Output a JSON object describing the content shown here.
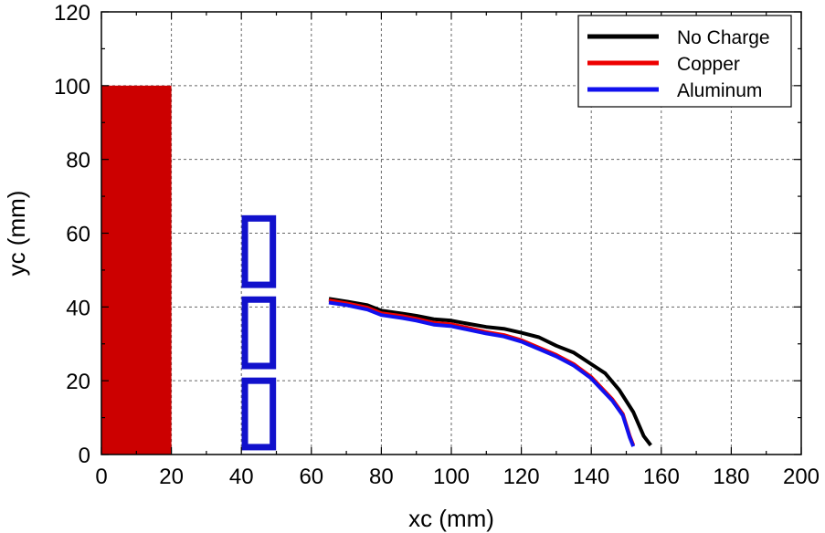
{
  "chart_data": {
    "type": "line",
    "title": "",
    "xlabel": "xc (mm)",
    "ylabel": "yc (mm)",
    "xlim": [
      0,
      200
    ],
    "ylim": [
      0,
      120
    ],
    "xticks": [
      0,
      20,
      40,
      60,
      80,
      100,
      120,
      140,
      160,
      180,
      200
    ],
    "yticks": [
      0,
      20,
      40,
      60,
      80,
      100,
      120
    ],
    "grid": true,
    "legend_position": "top-right",
    "series": [
      {
        "name": "No Charge",
        "color": "#000000",
        "x": [
          65,
          70,
          76,
          80,
          86,
          90,
          95,
          100,
          105,
          110,
          115,
          120,
          125,
          130,
          135,
          140,
          144,
          148,
          152,
          155,
          157
        ],
        "y": [
          42.2,
          41.5,
          40.5,
          39,
          38.2,
          37.6,
          36.7,
          36.3,
          35.4,
          34.6,
          34.1,
          33,
          31.8,
          29.5,
          27.6,
          24.5,
          22,
          17.5,
          11.5,
          5,
          2.5
        ]
      },
      {
        "name": "Copper",
        "color": "#ee0000",
        "x": [
          65,
          70,
          76,
          80,
          86,
          90,
          95,
          100,
          105,
          110,
          115,
          120,
          125,
          130,
          135,
          140,
          143,
          146,
          149,
          151,
          152
        ],
        "y": [
          41.8,
          41,
          39.8,
          38.3,
          37.5,
          36.8,
          35.7,
          35.3,
          34.3,
          33.2,
          32.4,
          31,
          29,
          27,
          24.5,
          21,
          18,
          15,
          11,
          5,
          2.5
        ]
      },
      {
        "name": "Aluminum",
        "color": "#1111ee",
        "x": [
          65,
          70,
          76,
          80,
          86,
          90,
          95,
          100,
          105,
          110,
          115,
          120,
          125,
          130,
          135,
          140,
          143,
          146,
          149,
          151,
          152
        ],
        "y": [
          41.2,
          40.5,
          39.3,
          37.8,
          37,
          36.3,
          35.2,
          34.8,
          33.8,
          32.8,
          32,
          30.6,
          28.6,
          26.6,
          24.1,
          20.6,
          17.6,
          14.6,
          10.6,
          4.6,
          2.2
        ]
      }
    ],
    "regions": [
      {
        "name": "charge-block",
        "color": "#cc0000",
        "x_range": [
          0,
          20
        ],
        "y_range": [
          0,
          100
        ],
        "filled": true
      },
      {
        "name": "tamper-bottom",
        "color": "#1111cc",
        "x_range": [
          41,
          49
        ],
        "y_range": [
          2,
          20
        ],
        "filled": false
      },
      {
        "name": "tamper-middle",
        "color": "#1111cc",
        "x_range": [
          41,
          49
        ],
        "y_range": [
          24,
          42
        ],
        "filled": false
      },
      {
        "name": "tamper-top",
        "color": "#1111cc",
        "x_range": [
          41,
          49
        ],
        "y_range": [
          46,
          64
        ],
        "filled": false
      }
    ]
  }
}
